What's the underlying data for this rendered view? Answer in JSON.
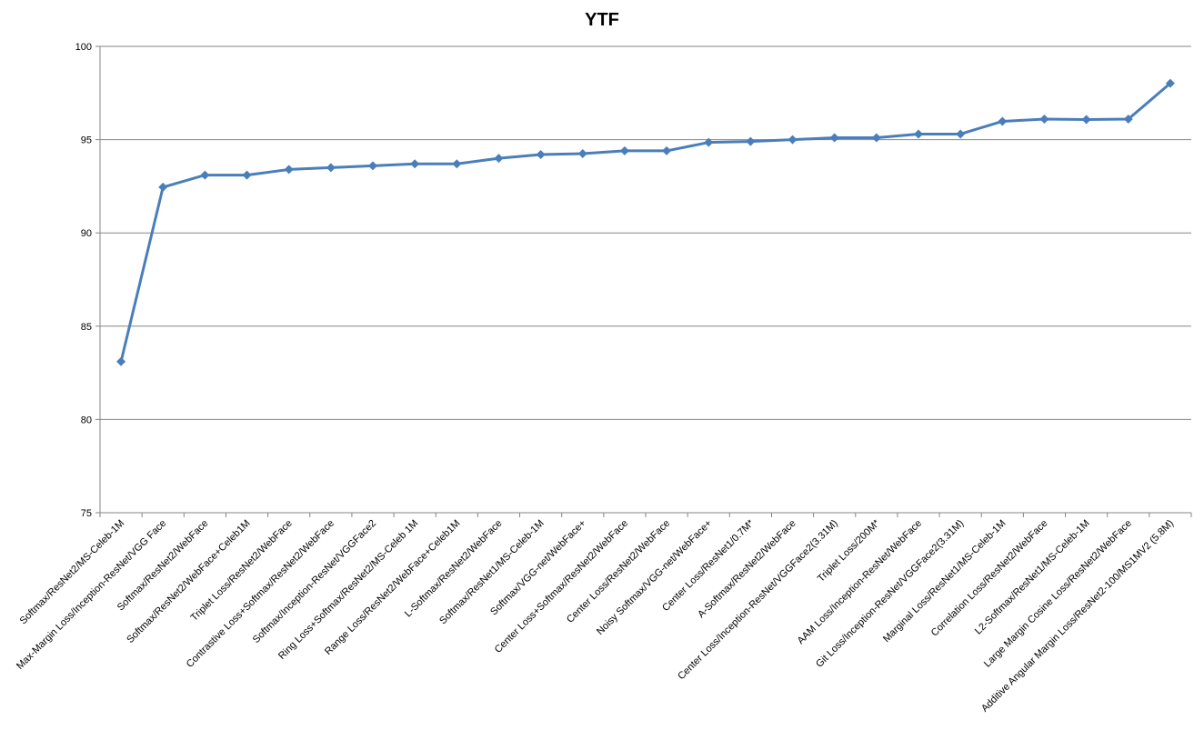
{
  "chart_data": {
    "type": "line",
    "title": "YTF",
    "xlabel": "",
    "ylabel": "",
    "ylim": [
      75,
      100
    ],
    "yticks": [
      75,
      80,
      85,
      90,
      95,
      100
    ],
    "grid": true,
    "legend": "none",
    "colors": {
      "line": "#4a7ebb",
      "grid": "#868686",
      "axis": "#868686"
    },
    "categories": [
      "Softmax/ResNet2/MS-Celeb-1M",
      "Max-Margin Loss/Inception-ResNet/VGG Face",
      "Softmax/ResNet2/WebFace",
      "Softmax/ResNet2/WebFace+Celeb1M",
      "Triplet Loss/ResNet2/WebFace",
      "Contrastive Loss+Softmax/ResNet2/WebFace",
      "Softmax/Inception-ResNet/VGGFace2",
      "Ring Loss+Softmax/ResNet2/MS-Celeb 1M",
      "Range Loss/ResNet2/WebFace+Celeb1M",
      "L-Softmax/ResNet2/WebFace",
      "Softmax/ResNet1/MS-Celeb-1M",
      "Softmax/VGG-net/WebFace+",
      "Center Loss+Softmax/ResNet2/WebFace",
      "Center Loss/ResNet2/WebFace",
      "Noisy Softmax/VGG-net/WebFace+",
      "Center Loss/ResNet1/0.7M*",
      "A-Softmax/ResNet2/WebFace",
      "Center Loss/Inception-ResNet/VGGFace2(3.31M)",
      "Triplet Loss/200M*",
      "AAM Loss/Inception-ResNet/WebFace",
      "Git Loss/Inception-ResNet/VGGFace2(3.31M)",
      "Marginal Loss/ResNet1/MS-Celeb-1M",
      "Correlation Loss/ResNet2/WebFace",
      "L2-Softmax/ResNet1/MS-Celeb-1M",
      "Large Margin Cosine Loss/ResNet2/WebFace",
      "Additive Angular Margin Loss/ResNet2-100/MS1MV2 (5.8M)"
    ],
    "series": [
      {
        "values": [
          83.1,
          92.45,
          93.1,
          93.1,
          93.4,
          93.5,
          93.6,
          93.7,
          93.7,
          94.0,
          94.2,
          94.25,
          94.4,
          94.4,
          94.85,
          94.9,
          95.0,
          95.1,
          95.1,
          95.3,
          95.3,
          95.98,
          96.1,
          96.08,
          96.1,
          98.02
        ]
      }
    ]
  }
}
